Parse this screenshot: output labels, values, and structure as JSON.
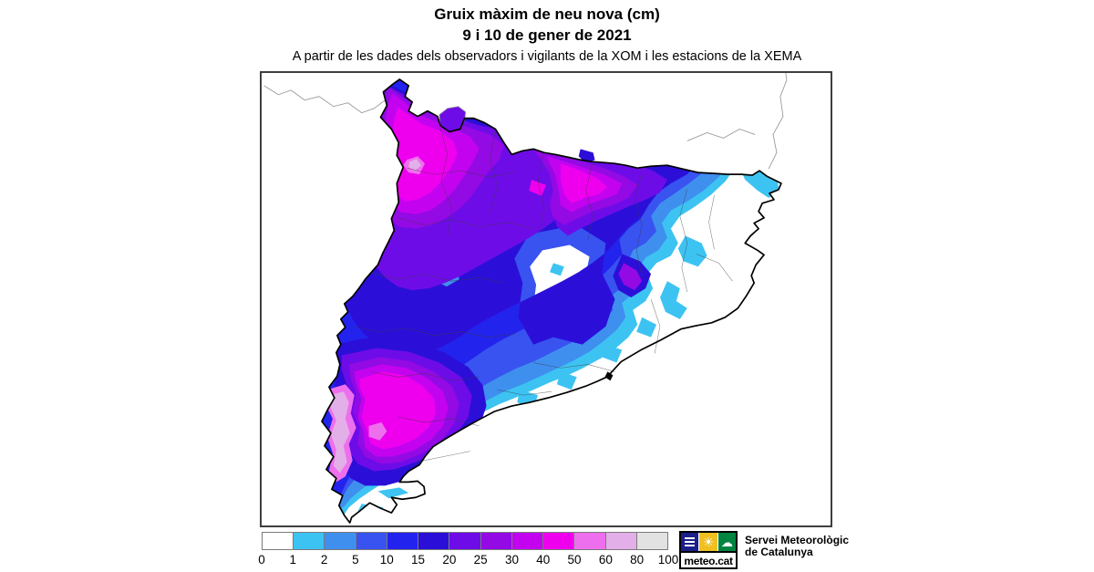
{
  "header": {
    "title_line1": "Gruix màxim de neu nova (cm)",
    "title_line2": "9 i 10 de gener de 2021",
    "subtitle": "A partir de les dades dels observadors i vigilants de la XOM i les estacions de la XEMA"
  },
  "legend": {
    "tick_labels": [
      "0",
      "1",
      "2",
      "5",
      "10",
      "15",
      "20",
      "25",
      "30",
      "40",
      "50",
      "60",
      "80",
      "100"
    ],
    "swatch_colors": [
      "#ffffff",
      "#3dc3f2",
      "#3f8fef",
      "#3853f0",
      "#2323ee",
      "#2b0fd8",
      "#6e0ce8",
      "#930ae4",
      "#c303f0",
      "#ee00ee",
      "#ee6fed",
      "#e3afe8",
      "#e2e2e2"
    ]
  },
  "map": {
    "outline_color": "#000000",
    "comarca_line_color": "#3a3a3a",
    "neighbor_line_color": "#9a9a9a",
    "sea_color": "#ffffff"
  },
  "logo": {
    "brand": "meteo.cat",
    "org_line1": "Servei Meteorològic",
    "org_line2": "de Catalunya",
    "square_menu_color": "#1b1f8a",
    "square_sun_color": "#efc020",
    "square_cloud_color": "#008440"
  }
}
